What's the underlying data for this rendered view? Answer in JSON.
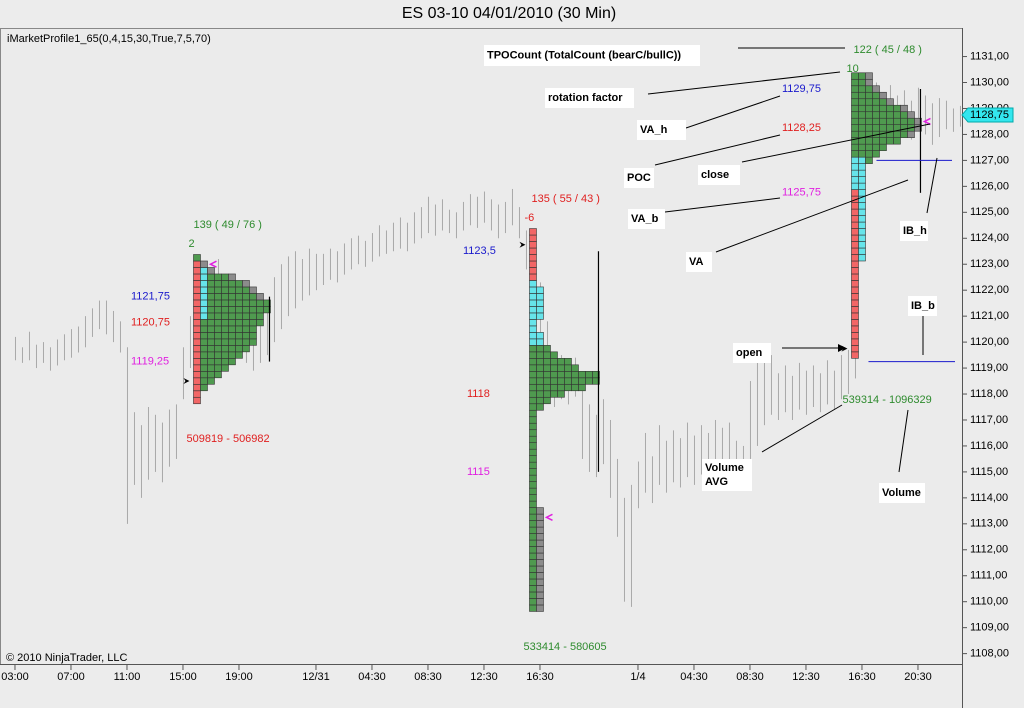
{
  "title": "ES 03-10  04/01/2010 (30 Min)",
  "indicator": "iMarketProfile1_65(0,4,15,30,True,7,5,70)",
  "copyright": "© 2010 NinjaTrader, LLC",
  "callouts": [
    "TPOCount (TotalCount (bearC/bullC))",
    "rotation factor",
    "VA_h",
    "POC",
    "close",
    "VA_b",
    "VA",
    "IB_h",
    "IB_b",
    "open",
    [
      "Volume",
      "AVG"
    ],
    "Volume"
  ],
  "chart_data": {
    "type": "market-profile",
    "ylim": [
      1107.6,
      1132.1
    ],
    "xlim": [
      -2.14,
      135.29
    ],
    "yticks": [
      {
        "value": 1108,
        "label": "1108,00"
      },
      {
        "value": 1109,
        "label": "1109,00"
      },
      {
        "value": 1110,
        "label": "1110,00"
      },
      {
        "value": 1111,
        "label": "1111,00"
      },
      {
        "value": 1112,
        "label": "1112,00"
      },
      {
        "value": 1113,
        "label": "1113,00"
      },
      {
        "value": 1114,
        "label": "1114,00"
      },
      {
        "value": 1115,
        "label": "1115,00"
      },
      {
        "value": 1116,
        "label": "1116,00"
      },
      {
        "value": 1117,
        "label": "1117,00"
      },
      {
        "value": 1118,
        "label": "1118,00"
      },
      {
        "value": 1119,
        "label": "1119,00"
      },
      {
        "value": 1120,
        "label": "1120,00"
      },
      {
        "value": 1121,
        "label": "1121,00"
      },
      {
        "value": 1122,
        "label": "1122,00"
      },
      {
        "value": 1123,
        "label": "1123,00"
      },
      {
        "value": 1124,
        "label": "1124,00"
      },
      {
        "value": 1125,
        "label": "1125,00"
      },
      {
        "value": 1126,
        "label": "1126,00"
      },
      {
        "value": 1127,
        "label": "1127,00"
      },
      {
        "value": 1128,
        "label": "1128,00"
      },
      {
        "value": 1129,
        "label": "1129,00"
      },
      {
        "value": 1130,
        "label": "1130,00"
      },
      {
        "value": 1131,
        "label": "1131,00"
      }
    ],
    "xticks": [
      {
        "value": 0,
        "label": "03:00"
      },
      {
        "value": 8,
        "label": "07:00"
      },
      {
        "value": 16,
        "label": "11:00"
      },
      {
        "value": 24,
        "label": "15:00"
      },
      {
        "value": 32,
        "label": "19:00"
      },
      {
        "value": 43,
        "label": "12/31"
      },
      {
        "value": 51,
        "label": "04:30"
      },
      {
        "value": 59,
        "label": "08:30"
      },
      {
        "value": 67,
        "label": "12:30"
      },
      {
        "value": 75,
        "label": "16:30"
      },
      {
        "value": 89,
        "label": "1/4"
      },
      {
        "value": 97,
        "label": "04:30"
      },
      {
        "value": 105,
        "label": "08:30"
      },
      {
        "value": 113,
        "label": "12:30"
      },
      {
        "value": 121,
        "label": "16:30"
      },
      {
        "value": 129,
        "label": "20:30"
      }
    ],
    "last_price": {
      "value": 1128.75,
      "label": "1128,75"
    },
    "bars": {
      "color": "#a8a8a8",
      "high": [
        1120.2,
        1119.8,
        1120.4,
        1119.9,
        1120,
        1119.8,
        1120.1,
        1120.3,
        1120.5,
        1120.6,
        1121,
        1121.3,
        1121.6,
        1121.6,
        1121.2,
        1120.8,
        1119.8,
        1117.3,
        1116.8,
        1117.5,
        1117.2,
        1116.9,
        1117.4,
        1117.6,
        1119.8,
        1121,
        1121.8,
        1122.2,
        1122.8,
        1123.2,
        1122.6,
        1122,
        1121.5,
        1121.2,
        1120.6,
        1121,
        1121.5,
        1122.5,
        1123,
        1123.3,
        1123.5,
        1123.2,
        1123.6,
        1123.4,
        1123.4,
        1123.6,
        1123.5,
        1123.8,
        1124,
        1124.1,
        1123.9,
        1124.2,
        1124.5,
        1124.3,
        1124.6,
        1124.8,
        1124.6,
        1125,
        1125.2,
        1125.6,
        1125.3,
        1125.5,
        1125.1,
        1125,
        1125.4,
        1125.7,
        1125.6,
        1125.8,
        1125.5,
        1125.3,
        1125.4,
        1125.9,
        1125.2,
        1124.3,
        1123.5,
        1122.3,
        1120.8,
        1119.6,
        1119.5,
        1119.2,
        1119.4,
        1118.5,
        1117.6,
        1117.2,
        1117.8,
        1117,
        1115.5,
        1114,
        1114.5,
        1115.4,
        1116.5,
        1115.6,
        1116.8,
        1116.2,
        1116.6,
        1116.3,
        1116.9,
        1116.4,
        1116.8,
        1116.5,
        1117,
        1116.7,
        1116.9,
        1116.2,
        1116,
        1118.5,
        1119.2,
        1119.8,
        1119.5,
        1118.8,
        1119.1,
        1118.7,
        1119.2,
        1118.9,
        1119.1,
        1118.8,
        1119.3,
        1118.9,
        1119.5,
        1119.7,
        1120,
        1128.6,
        1129.8,
        1130,
        1129.6,
        1129.9,
        1129.5,
        1129.7,
        1129.3,
        1129.8,
        1129.5,
        1129.2,
        1129.4,
        1129.3,
        1129,
        1129.1
      ],
      "low": [
        1119.3,
        1119.2,
        1119.3,
        1119,
        1119.2,
        1118.9,
        1119.1,
        1119.3,
        1119.4,
        1119.6,
        1119.8,
        1120.2,
        1120.5,
        1120.3,
        1120,
        1119.6,
        1113,
        1114.5,
        1114,
        1114.7,
        1115,
        1114.6,
        1115.2,
        1115.5,
        1117.8,
        1119,
        1119.5,
        1120,
        1120.3,
        1120.6,
        1120.4,
        1120,
        1119.5,
        1119.2,
        1118.9,
        1119.2,
        1119.5,
        1120,
        1120.5,
        1121,
        1121.3,
        1121.6,
        1121.8,
        1122,
        1122.2,
        1122.4,
        1122.3,
        1122.6,
        1122.8,
        1123,
        1122.9,
        1123.1,
        1123.3,
        1123.4,
        1123.5,
        1123.6,
        1123.5,
        1123.8,
        1124,
        1124.2,
        1124.1,
        1124.3,
        1124.2,
        1124,
        1124.3,
        1124.5,
        1124.4,
        1124.6,
        1124.3,
        1124,
        1124.2,
        1124.5,
        1124,
        1122.8,
        1121.5,
        1120.2,
        1118.5,
        1117.5,
        1117.8,
        1117.6,
        1117.9,
        1115.5,
        1115,
        1114.8,
        1115.3,
        1114,
        1112.5,
        1110,
        1109.8,
        1113.6,
        1114.2,
        1113.8,
        1114.5,
        1114.2,
        1114.6,
        1114.4,
        1114.8,
        1114.5,
        1114.9,
        1114.7,
        1115,
        1114.6,
        1114.8,
        1114.3,
        1114.4,
        1115.5,
        1116,
        1116.8,
        1117.2,
        1117,
        1117.3,
        1117,
        1117.4,
        1117.2,
        1117.5,
        1117.3,
        1117.6,
        1117.4,
        1117.8,
        1118,
        1118.6,
        1126.5,
        1127.5,
        1127.8,
        1128,
        1128.2,
        1127.9,
        1128.1,
        1127.8,
        1128.3,
        1128,
        1127.6,
        1127.9,
        1128.2,
        1128.1,
        1128.3
      ]
    },
    "profiles": [
      {
        "x_index": 26,
        "low": 1117.75,
        "step": 0.25,
        "counts": [
          1,
          1,
          2,
          3,
          4,
          5,
          6,
          7,
          8,
          9,
          9,
          9,
          10,
          10,
          11,
          11,
          10,
          9,
          8,
          6,
          3,
          2,
          1
        ],
        "red": [
          1117.75,
          1123
        ],
        "cyan": [
          1121,
          1123
        ],
        "grey_above": 1121.75,
        "open": 1118.5,
        "close": 1123,
        "tpo_text": "139 ( 49 / 76 )",
        "tpo_color": "#2e8b2e",
        "rotation": 2,
        "va_h": {
          "value": 1121.75,
          "label": "1121,75"
        },
        "poc": {
          "value": 1120.75,
          "label": "1120,75"
        },
        "va_b": {
          "value": 1119.25,
          "label": "1119,25"
        },
        "volume_text": "509819 - 506982",
        "volume_color": "#e02020"
      },
      {
        "x_index": 74,
        "low": 1109.75,
        "step": 0.25,
        "counts": [
          2,
          2,
          2,
          2,
          2,
          2,
          2,
          2,
          2,
          2,
          2,
          2,
          2,
          2,
          2,
          2,
          1,
          1,
          1,
          1,
          1,
          1,
          1,
          1,
          1,
          1,
          1,
          1,
          1,
          1,
          1,
          2,
          3,
          5,
          8,
          10,
          10,
          7,
          6,
          4,
          3,
          2,
          2,
          1,
          1,
          2,
          2,
          2,
          2,
          2,
          1,
          1,
          1,
          1,
          1,
          1,
          1,
          1,
          1
        ],
        "red": [
          1122.5,
          1124.25
        ],
        "cyan": [
          1120,
          1122.25
        ],
        "grey_below": 1113.5,
        "open": 1123.75,
        "close": 1113.25,
        "tpo_text": "135 ( 55 / 43 )",
        "tpo_color": "#e02020",
        "rotation": -6,
        "va_h": {
          "value": 1123.5,
          "label": "1123,5"
        },
        "poc": {
          "value": 1118,
          "label": "1118"
        },
        "va_b": {
          "value": 1115,
          "label": "1115"
        },
        "volume_text": "533414 - 580605",
        "volume_color": "#2e8b2e"
      },
      {
        "x_index": 120,
        "low": 1119.5,
        "step": 0.25,
        "counts": [
          1,
          1,
          1,
          1,
          1,
          1,
          1,
          1,
          1,
          1,
          1,
          1,
          1,
          1,
          1,
          2,
          2,
          2,
          2,
          2,
          2,
          2,
          2,
          2,
          2,
          2,
          2,
          2,
          2,
          2,
          3,
          4,
          5,
          7,
          9,
          10,
          10,
          9,
          8,
          6,
          5,
          4,
          3,
          3
        ],
        "red": [
          1119.5,
          1125.75
        ],
        "cyan": [
          1123.25,
          1127
        ],
        "grey_above": 1128,
        "open": 1119.75,
        "close": 1128.5,
        "ib_h": 1127,
        "ib_b": 1119.25,
        "tpo_text": "122 ( 45 / 48 )",
        "tpo_color": "#2e8b2e",
        "rotation": 10,
        "va_h": {
          "value": 1129.75,
          "label": "1129,75"
        },
        "poc": {
          "value": 1128.25,
          "label": "1128,25"
        },
        "va_b": {
          "value": 1125.75,
          "label": "1125,75"
        },
        "volume_text": "539314 - 1096329",
        "volume_color": "#2e8b2e"
      }
    ]
  }
}
